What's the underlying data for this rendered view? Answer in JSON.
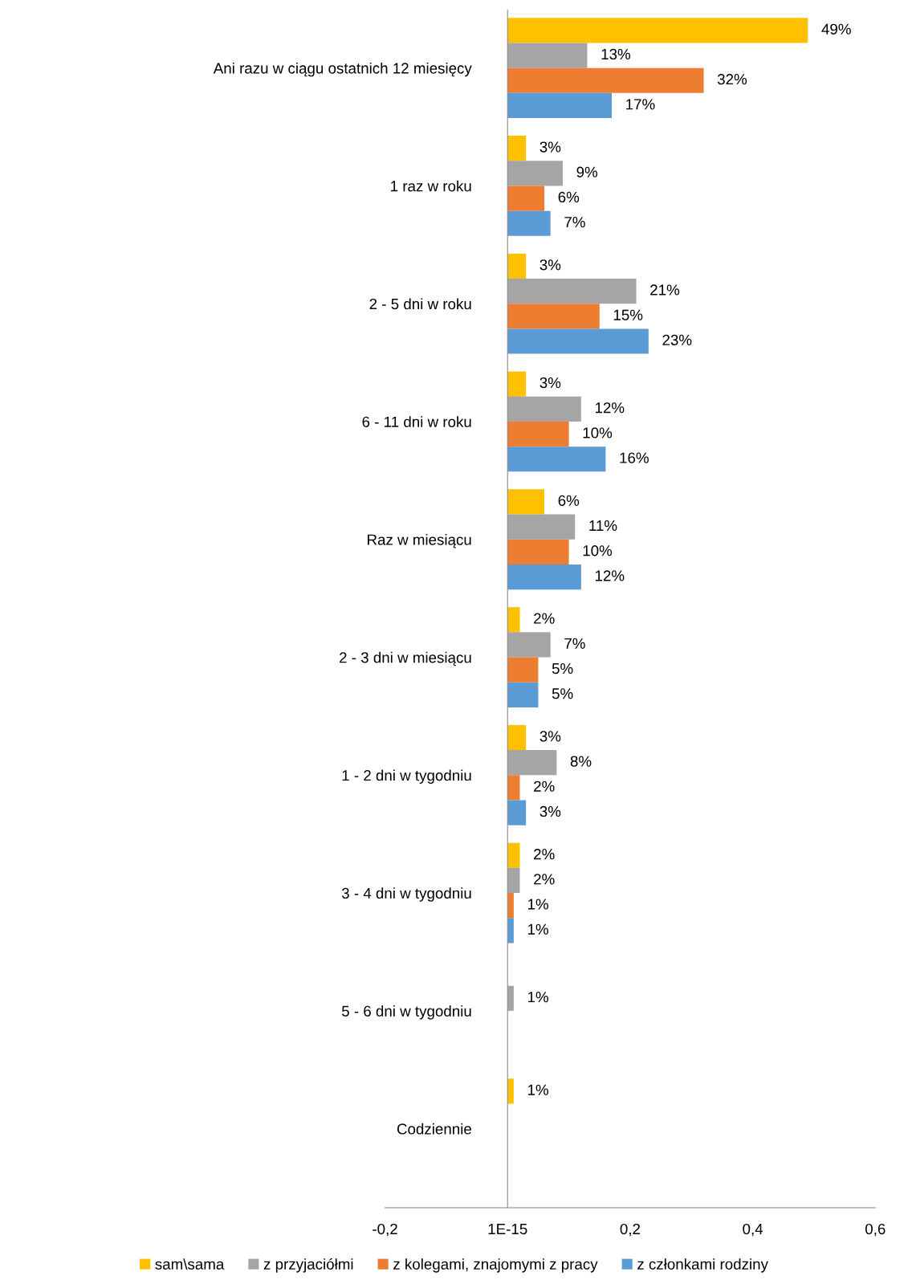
{
  "chart_data": {
    "type": "bar",
    "orientation": "horizontal",
    "categories": [
      "Ani razu w ciągu ostatnich 12 miesięcy",
      "1 raz w roku",
      "2 - 5 dni w roku",
      "6 - 11 dni w roku",
      "Raz w miesiącu",
      "2 - 3 dni w miesiącu",
      "1 - 2 dni w tygodniu",
      "3 - 4 dni w tygodniu",
      "5 - 6 dni w tygodniu",
      "Codziennie"
    ],
    "series": [
      {
        "name": "sam\\sama",
        "color": "#ffc000",
        "values": [
          0.49,
          0.03,
          0.03,
          0.03,
          0.06,
          0.02,
          0.03,
          0.02,
          null,
          0.01
        ],
        "value_labels": [
          "49%",
          "3%",
          "3%",
          "3%",
          "6%",
          "2%",
          "3%",
          "2%",
          null,
          "1%"
        ]
      },
      {
        "name": "z przyjaciółmi",
        "color": "#a5a5a5",
        "values": [
          0.13,
          0.09,
          0.21,
          0.12,
          0.11,
          0.07,
          0.08,
          0.02,
          0.01,
          null
        ],
        "value_labels": [
          "13%",
          "9%",
          "21%",
          "12%",
          "11%",
          "7%",
          "8%",
          "2%",
          "1%",
          null
        ]
      },
      {
        "name": "z kolegami, znajomymi z pracy",
        "color": "#ed7d31",
        "values": [
          0.32,
          0.06,
          0.15,
          0.1,
          0.1,
          0.05,
          0.02,
          0.01,
          null,
          null
        ],
        "value_labels": [
          "32%",
          "6%",
          "15%",
          "10%",
          "10%",
          "5%",
          "2%",
          "1%",
          null,
          null
        ]
      },
      {
        "name": "z członkami rodziny",
        "color": "#5b9bd5",
        "values": [
          0.17,
          0.07,
          0.23,
          0.16,
          0.12,
          0.05,
          0.03,
          0.01,
          null,
          null
        ],
        "value_labels": [
          "17%",
          "7%",
          "23%",
          "16%",
          "12%",
          "5%",
          "3%",
          "1%",
          null,
          null
        ]
      }
    ],
    "xlim": [
      -0.2,
      0.6
    ],
    "xticks": [
      {
        "value": -0.2,
        "label": "-0,2"
      },
      {
        "value": 0,
        "label": "1E-15"
      },
      {
        "value": 0.2,
        "label": "0,2"
      },
      {
        "value": 0.4,
        "label": "0,4"
      },
      {
        "value": 0.6,
        "label": "0,6"
      }
    ],
    "grid": false,
    "legend": "bottom"
  }
}
